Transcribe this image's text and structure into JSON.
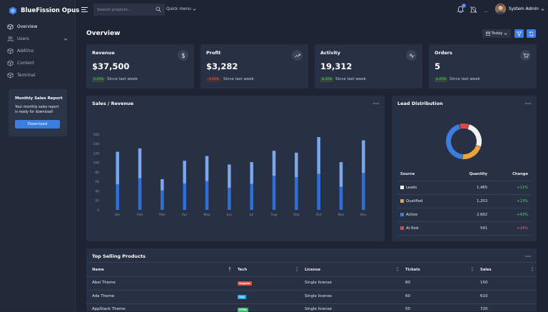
{
  "app": {
    "name": "BlueFission Opus"
  },
  "sidebar": {
    "items": [
      {
        "label": "Overview",
        "icon": "cube-icon",
        "active": true
      },
      {
        "label": "Users",
        "icon": "users-icon",
        "expandable": true
      },
      {
        "label": "AddOns",
        "icon": "cube-icon"
      },
      {
        "label": "Content",
        "icon": "cube-icon"
      },
      {
        "label": "Terminal",
        "icon": "cube-icon"
      }
    ],
    "promo": {
      "title": "Monthly Sales Report",
      "text": "Your monthly sales report is ready for download!",
      "button": "Download"
    }
  },
  "topbar": {
    "search_placeholder": "Search projects...",
    "quick_menu": "Quick menu",
    "notifications_count": "2",
    "user_name": "System Admin"
  },
  "page": {
    "title": "Overview",
    "date_filter": "Today"
  },
  "stats": [
    {
      "title": "Revenue",
      "value": "$37,500",
      "change": "5.25%",
      "direction": "up",
      "since": "Since last week",
      "icon": "dollar-icon"
    },
    {
      "title": "Profit",
      "value": "$3,282",
      "change": "-4.65%",
      "direction": "down",
      "since": "Since last week",
      "icon": "trending-up-icon"
    },
    {
      "title": "Activity",
      "value": "19,312",
      "change": "8.35%",
      "direction": "up",
      "since": "Since last week",
      "icon": "activity-icon"
    },
    {
      "title": "Orders",
      "value": "5",
      "change": "4.25%",
      "direction": "up",
      "since": "Since last week",
      "icon": "cart-icon"
    }
  ],
  "sales_chart": {
    "title": "Sales / Revenue"
  },
  "chart_data": {
    "type": "bar",
    "stacked": true,
    "categories": [
      "Jan",
      "Feb",
      "Mar",
      "Apr",
      "May",
      "Jun",
      "Jul",
      "Aug",
      "Sep",
      "Oct",
      "Nov",
      "Dec"
    ],
    "series": [
      {
        "values": [
          54,
          67,
          41,
          56,
          61,
          47,
          55,
          72,
          69,
          76,
          49,
          78
        ],
        "color": "#2f6fdc"
      },
      {
        "values": [
          69,
          63,
          24,
          48,
          53,
          49,
          46,
          53,
          52,
          78,
          52,
          69
        ],
        "color": "#7ba7ee"
      }
    ],
    "totals": [
      123,
      130,
      65,
      104,
      114,
      96,
      101,
      125,
      121,
      154,
      101,
      147
    ],
    "yticks": [
      0,
      20,
      40,
      60,
      80,
      100,
      120,
      140,
      160
    ],
    "ylim": [
      0,
      160
    ],
    "grid": false,
    "legend": "none"
  },
  "lead_distribution": {
    "title": "Lead Distribution",
    "columns": [
      "Source",
      "Quantity",
      "Change"
    ],
    "rows": [
      {
        "source": "Leads",
        "quantity": "1,465",
        "change": "+11%",
        "direction": "up",
        "color": "#f2f2f2"
      },
      {
        "source": "Qualified",
        "quantity": "1,253",
        "change": "+13%",
        "direction": "up",
        "color": "#e8a33d"
      },
      {
        "source": "Active",
        "quantity": "2,602",
        "change": "+43%",
        "direction": "up",
        "color": "#3c7de0"
      },
      {
        "source": "At Risk",
        "quantity": "541",
        "change": "+24%",
        "direction": "down",
        "color": "#e0474c"
      }
    ]
  },
  "products": {
    "title": "Top Selling Products",
    "columns": [
      "Name",
      "Tech",
      "License",
      "Tickets",
      "Sales"
    ],
    "rows": [
      {
        "name": "Abel Theme",
        "tech": "Angular",
        "tech_color": "#e0474c",
        "license": "Single license",
        "tickets": "80",
        "sales": "150"
      },
      {
        "name": "Ada Theme",
        "tech": "Vue",
        "tech_color": "#2aa7e0",
        "license": "Single license",
        "tickets": "60",
        "sales": "610"
      },
      {
        "name": "AppStack Theme",
        "tech": "HTML",
        "tech_color": "#3fb56a",
        "license": "Single license",
        "tickets": "50",
        "sales": "720"
      }
    ]
  }
}
